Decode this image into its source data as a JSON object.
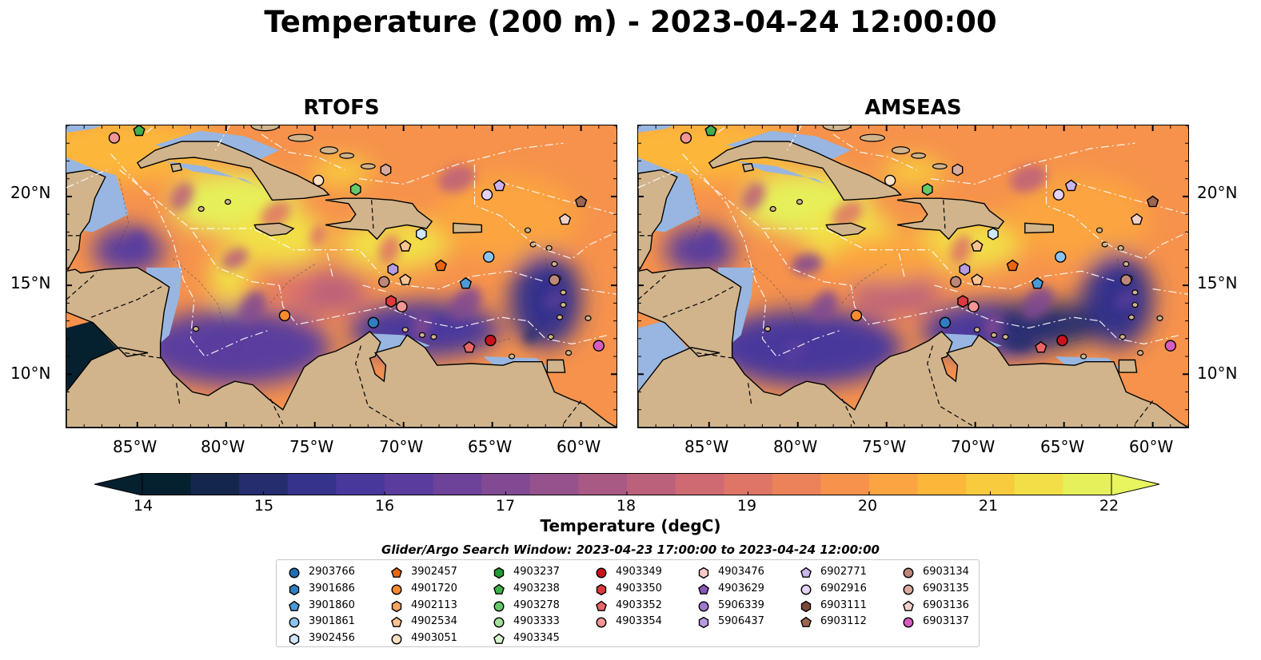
{
  "title": "Temperature (200 m) - 2023-04-24 12:00:00",
  "panels": [
    {
      "title": "RTOFS"
    },
    {
      "title": "AMSEAS"
    }
  ],
  "axes": {
    "lon_labels": [
      "85°W",
      "80°W",
      "75°W",
      "70°W",
      "65°W",
      "60°W"
    ],
    "lat_labels": [
      "20°N",
      "15°N",
      "10°N"
    ],
    "lon_range": [
      -89,
      -58
    ],
    "lat_range": [
      7,
      24
    ]
  },
  "colorbar": {
    "title": "Temperature (degC)",
    "ticks": [
      "14",
      "15",
      "16",
      "17",
      "18",
      "19",
      "20",
      "21",
      "22"
    ],
    "range": [
      14,
      22
    ],
    "colors": [
      "#05202f",
      "#15264d",
      "#252d6e",
      "#36338c",
      "#48389c",
      "#5a3c9e",
      "#6d4299",
      "#814a93",
      "#95528c",
      "#a85a84",
      "#bc617c",
      "#cf6a72",
      "#df7566",
      "#ec8259",
      "#f6924c",
      "#fba441",
      "#fcb73a",
      "#f8cb3e",
      "#f2df47",
      "#e6f05a"
    ],
    "under": "#05202f",
    "over": "#e8f55f"
  },
  "map_colors": {
    "land": "#d1b48c",
    "shallow": "#98b6e1"
  },
  "legend": {
    "title": "Glider/Argo Search Window: 2023-04-23 17:00:00 to 2023-04-24 12:00:00",
    "items": [
      {
        "id": "2903766",
        "shape": "circle",
        "color": "#1f6fb4"
      },
      {
        "id": "3901686",
        "shape": "hexagon",
        "color": "#2f7ec2"
      },
      {
        "id": "3901860",
        "shape": "pentagon",
        "color": "#4c9ad6"
      },
      {
        "id": "3901861",
        "shape": "circle",
        "color": "#8cc2ef"
      },
      {
        "id": "3902456",
        "shape": "hexagon",
        "color": "#cfe6fb"
      },
      {
        "id": "3902457",
        "shape": "pentagon",
        "color": "#e6670f"
      },
      {
        "id": "4901720",
        "shape": "circle",
        "color": "#f88b2e"
      },
      {
        "id": "4902113",
        "shape": "hexagon",
        "color": "#f9a45f"
      },
      {
        "id": "4902534",
        "shape": "pentagon",
        "color": "#fbc390"
      },
      {
        "id": "4903051",
        "shape": "circle",
        "color": "#fde0c2"
      },
      {
        "id": "4903237",
        "shape": "hexagon",
        "color": "#239b36"
      },
      {
        "id": "4903238",
        "shape": "pentagon",
        "color": "#3fb04c"
      },
      {
        "id": "4903278",
        "shape": "circle",
        "color": "#66c86a"
      },
      {
        "id": "4903333",
        "shape": "circle",
        "color": "#a4e09c"
      },
      {
        "id": "4903345",
        "shape": "pentagon",
        "color": "#d5f5cf"
      },
      {
        "id": "4903349",
        "shape": "circle",
        "color": "#c9141d"
      },
      {
        "id": "4903350",
        "shape": "hexagon",
        "color": "#dc3a3f"
      },
      {
        "id": "4903352",
        "shape": "pentagon",
        "color": "#e96566"
      },
      {
        "id": "4903354",
        "shape": "circle",
        "color": "#f39594"
      },
      {
        "id": "4903476",
        "shape": "hexagon",
        "color": "#fbc9c7"
      },
      {
        "id": "4903629",
        "shape": "pentagon",
        "color": "#8458b7"
      },
      {
        "id": "5906339",
        "shape": "circle",
        "color": "#a07ad1"
      },
      {
        "id": "5906437",
        "shape": "hexagon",
        "color": "#b89be0"
      },
      {
        "id": "6902771",
        "shape": "pentagon",
        "color": "#ccb4ee"
      },
      {
        "id": "6902916",
        "shape": "circle",
        "color": "#e2d3f7"
      },
      {
        "id": "6903111",
        "shape": "hexagon",
        "color": "#7a4a38"
      },
      {
        "id": "6903112",
        "shape": "pentagon",
        "color": "#9c6550"
      },
      {
        "id": "6903134",
        "shape": "circle",
        "color": "#bd8878"
      },
      {
        "id": "6903135",
        "shape": "circle",
        "color": "#d9ab9e"
      },
      {
        "id": "6903136",
        "shape": "pentagon",
        "color": "#f1d1c8"
      },
      {
        "id": "6903137",
        "shape": "circle",
        "color": "#d65cc0"
      }
    ]
  },
  "markers": [
    {
      "lon": -86.3,
      "lat": 23.3,
      "shape": "circle",
      "color": "#f39594"
    },
    {
      "lon": -84.9,
      "lat": 23.7,
      "shape": "pentagon",
      "color": "#3fb04c"
    },
    {
      "lon": -74.8,
      "lat": 20.9,
      "shape": "circle",
      "color": "#fde0c2"
    },
    {
      "lon": -72.7,
      "lat": 20.4,
      "shape": "hexagon",
      "color": "#66c86a"
    },
    {
      "lon": -71.0,
      "lat": 21.5,
      "shape": "hexagon",
      "color": "#d9ab9e"
    },
    {
      "lon": -69.0,
      "lat": 17.9,
      "shape": "hexagon",
      "color": "#cfe6fb"
    },
    {
      "lon": -69.9,
      "lat": 17.2,
      "shape": "pentagon",
      "color": "#fbc390"
    },
    {
      "lon": -70.6,
      "lat": 15.9,
      "shape": "hexagon",
      "color": "#b89be0"
    },
    {
      "lon": -69.9,
      "lat": 15.3,
      "shape": "pentagon",
      "color": "#fbc390"
    },
    {
      "lon": -71.1,
      "lat": 15.2,
      "shape": "circle",
      "color": "#bd8878"
    },
    {
      "lon": -70.7,
      "lat": 14.1,
      "shape": "hexagon",
      "color": "#dc3a3f"
    },
    {
      "lon": -70.1,
      "lat": 13.8,
      "shape": "circle",
      "color": "#f39594"
    },
    {
      "lon": -76.7,
      "lat": 13.3,
      "shape": "circle",
      "color": "#f88b2e"
    },
    {
      "lon": -71.7,
      "lat": 12.9,
      "shape": "circle",
      "color": "#2f7ec2"
    },
    {
      "lon": -67.9,
      "lat": 16.1,
      "shape": "pentagon",
      "color": "#e6670f"
    },
    {
      "lon": -66.5,
      "lat": 15.1,
      "shape": "pentagon",
      "color": "#4c9ad6"
    },
    {
      "lon": -65.2,
      "lat": 16.6,
      "shape": "circle",
      "color": "#8cc2ef"
    },
    {
      "lon": -65.3,
      "lat": 20.1,
      "shape": "circle",
      "color": "#e2d3f7"
    },
    {
      "lon": -64.6,
      "lat": 20.6,
      "shape": "pentagon",
      "color": "#ccb4ee"
    },
    {
      "lon": -60.9,
      "lat": 18.7,
      "shape": "pentagon",
      "color": "#f1d1c8"
    },
    {
      "lon": -60.0,
      "lat": 19.7,
      "shape": "pentagon",
      "color": "#9c6550"
    },
    {
      "lon": -61.5,
      "lat": 15.3,
      "shape": "circle",
      "color": "#bd8878"
    },
    {
      "lon": -65.1,
      "lat": 11.9,
      "shape": "circle",
      "color": "#c9141d"
    },
    {
      "lon": -66.3,
      "lat": 11.5,
      "shape": "pentagon",
      "color": "#e96566"
    },
    {
      "lon": -59.0,
      "lat": 11.6,
      "shape": "circle",
      "color": "#d65cc0"
    }
  ]
}
